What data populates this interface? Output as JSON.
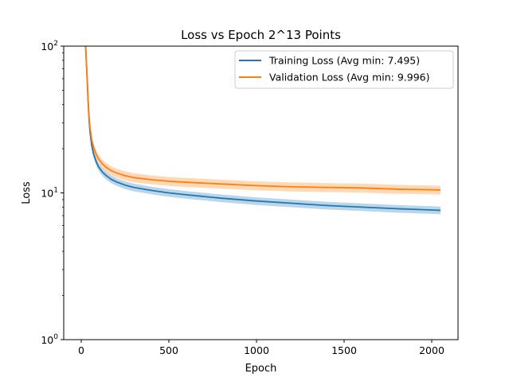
{
  "chart_data": {
    "type": "line",
    "title": "Loss vs Epoch 2^13 Points",
    "xlabel": "Epoch",
    "ylabel": "Loss",
    "xlim": [
      -100,
      2150
    ],
    "ylim": [
      1,
      100
    ],
    "yscale": "log",
    "grid": false,
    "legend_position": "top-right",
    "x_ticks": [
      0,
      500,
      1000,
      1500,
      2000
    ],
    "x_tick_labels": [
      "0",
      "500",
      "1000",
      "1500",
      "2000"
    ],
    "y_ticks": [
      1,
      10,
      100
    ],
    "y_tick_labels": [
      "10^0",
      "10^1",
      "10^2"
    ],
    "series": [
      {
        "name": "Training Loss (Avg min: 7.495)",
        "color": "#1f77b4",
        "x": [
          25,
          30,
          35,
          40,
          45,
          50,
          60,
          70,
          80,
          90,
          100,
          120,
          140,
          170,
          200,
          250,
          300,
          400,
          500,
          600,
          800,
          1000,
          1200,
          1400,
          1600,
          1800,
          2000,
          2050
        ],
        "y": [
          100,
          75,
          55,
          40,
          31,
          26,
          21,
          18.5,
          17,
          15.8,
          15,
          13.9,
          13.2,
          12.4,
          11.9,
          11.3,
          10.9,
          10.4,
          10.0,
          9.7,
          9.2,
          8.8,
          8.5,
          8.2,
          8.0,
          7.8,
          7.65,
          7.6
        ],
        "band_rel": 0.06
      },
      {
        "name": "Validation Loss (Avg min: 9.996)",
        "color": "#ff7f0e",
        "x": [
          25,
          30,
          35,
          40,
          45,
          50,
          60,
          70,
          80,
          90,
          100,
          120,
          140,
          170,
          200,
          250,
          300,
          400,
          500,
          600,
          800,
          1000,
          1200,
          1400,
          1600,
          1800,
          2000,
          2050
        ],
        "y": [
          100,
          76,
          57,
          42,
          33,
          28,
          23,
          20.5,
          19,
          17.8,
          17,
          15.8,
          15,
          14.2,
          13.7,
          13.1,
          12.7,
          12.3,
          12.0,
          11.8,
          11.5,
          11.2,
          11.0,
          10.9,
          10.8,
          10.6,
          10.5,
          10.45
        ],
        "band_rel": 0.07
      }
    ]
  }
}
